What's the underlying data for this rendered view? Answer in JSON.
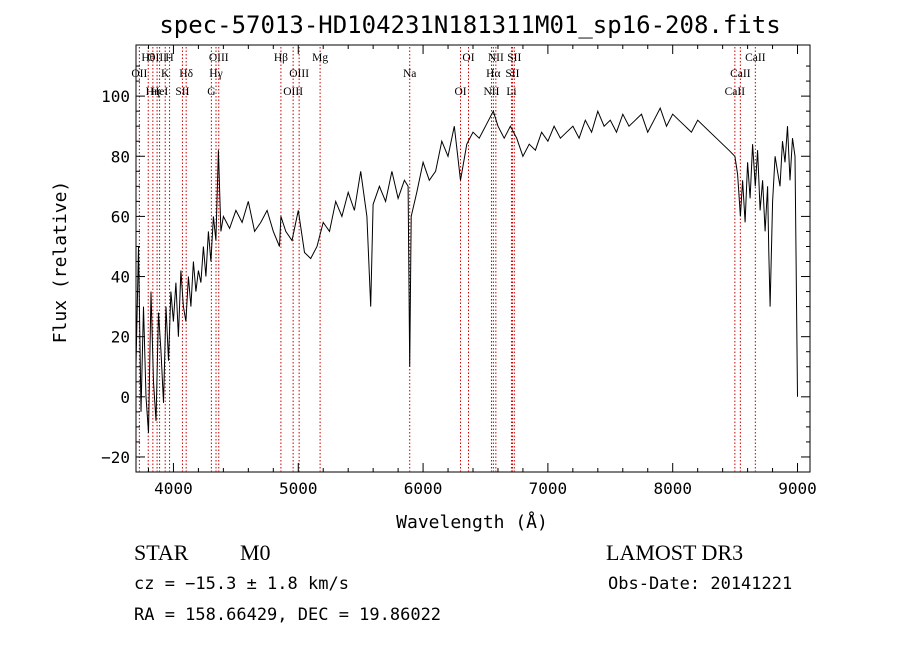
{
  "chart_data": {
    "type": "line",
    "title": "spec-57013-HD104231N181311M01_sp16-208.fits",
    "xlabel": "Wavelength (Å)",
    "ylabel": "Flux (relative)",
    "xlim": [
      3700,
      9100
    ],
    "ylim": [
      -25,
      117
    ],
    "xticks": [
      4000,
      5000,
      6000,
      7000,
      8000,
      9000
    ],
    "xtick_labels": [
      "4000",
      "5000",
      "6000",
      "7000",
      "8000",
      "9000"
    ],
    "yticks": [
      -20,
      0,
      20,
      40,
      60,
      80,
      100
    ],
    "ytick_labels": [
      "−20",
      "0",
      "20",
      "40",
      "60",
      "80",
      "100"
    ],
    "series": [
      {
        "name": "flux",
        "x": [
          3700,
          3720,
          3740,
          3760,
          3780,
          3800,
          3820,
          3840,
          3860,
          3880,
          3900,
          3920,
          3940,
          3960,
          3980,
          4000,
          4020,
          4040,
          4060,
          4080,
          4100,
          4120,
          4140,
          4160,
          4180,
          4200,
          4220,
          4240,
          4260,
          4280,
          4300,
          4320,
          4340,
          4360,
          4380,
          4400,
          4450,
          4500,
          4550,
          4600,
          4650,
          4700,
          4750,
          4800,
          4850,
          4861,
          4900,
          4950,
          5000,
          5050,
          5100,
          5150,
          5200,
          5250,
          5300,
          5350,
          5400,
          5450,
          5500,
          5550,
          5580,
          5600,
          5650,
          5700,
          5750,
          5800,
          5850,
          5880,
          5893,
          5905,
          5950,
          6000,
          6050,
          6100,
          6150,
          6200,
          6250,
          6300,
          6350,
          6400,
          6450,
          6500,
          6563,
          6600,
          6650,
          6700,
          6750,
          6800,
          6850,
          6900,
          6950,
          7000,
          7050,
          7100,
          7150,
          7200,
          7250,
          7300,
          7350,
          7400,
          7450,
          7500,
          7550,
          7600,
          7650,
          7700,
          7750,
          7800,
          7850,
          7900,
          7950,
          8000,
          8050,
          8100,
          8150,
          8200,
          8250,
          8300,
          8350,
          8400,
          8450,
          8498,
          8520,
          8542,
          8560,
          8580,
          8600,
          8620,
          8640,
          8662,
          8680,
          8700,
          8720,
          8740,
          8760,
          8770,
          8780,
          8800,
          8820,
          8840,
          8860,
          8880,
          8900,
          8920,
          8940,
          8960,
          8980,
          9000
        ],
        "y": [
          10,
          50,
          -5,
          30,
          0,
          -12,
          35,
          5,
          -8,
          28,
          15,
          -2,
          30,
          12,
          35,
          25,
          38,
          20,
          42,
          30,
          25,
          40,
          30,
          45,
          35,
          42,
          38,
          50,
          40,
          55,
          45,
          60,
          52,
          82,
          55,
          60,
          56,
          62,
          58,
          65,
          55,
          58,
          62,
          55,
          50,
          60,
          55,
          52,
          62,
          48,
          46,
          50,
          58,
          55,
          65,
          60,
          68,
          62,
          75,
          60,
          30,
          64,
          70,
          65,
          75,
          66,
          72,
          70,
          10,
          60,
          68,
          78,
          72,
          75,
          85,
          80,
          90,
          72,
          84,
          88,
          86,
          90,
          95,
          90,
          86,
          90,
          86,
          80,
          84,
          82,
          88,
          85,
          90,
          86,
          88,
          90,
          86,
          92,
          88,
          95,
          90,
          92,
          88,
          94,
          90,
          92,
          94,
          88,
          92,
          96,
          90,
          94,
          92,
          90,
          88,
          92,
          90,
          88,
          86,
          84,
          82,
          80,
          74,
          60,
          72,
          58,
          78,
          66,
          84,
          70,
          82,
          62,
          72,
          55,
          70,
          48,
          30,
          65,
          80,
          75,
          70,
          85,
          78,
          90,
          72,
          86,
          80,
          0
        ],
        "color": "#000000"
      }
    ],
    "line_markers": [
      {
        "label": "Hθ",
        "wavelength": 3798
      },
      {
        "label": "OII",
        "wavelength": 3727
      },
      {
        "label": "Hη",
        "wavelength": 3835
      },
      {
        "label": "OIII",
        "wavelength": 3869
      },
      {
        "label": "K",
        "wavelength": 3934
      },
      {
        "label": "HeI",
        "wavelength": 3889
      },
      {
        "label": "H",
        "wavelength": 3969
      },
      {
        "label": "Hδ",
        "wavelength": 4102
      },
      {
        "label": "SII",
        "wavelength": 4072
      },
      {
        "label": "OIII",
        "wavelength": 4363
      },
      {
        "label": "Hγ",
        "wavelength": 4341
      },
      {
        "label": "G",
        "wavelength": 4304
      },
      {
        "label": "Hβ",
        "wavelength": 4861
      },
      {
        "label": "OIII",
        "wavelength": 5007
      },
      {
        "label": "OIII",
        "wavelength": 4959
      },
      {
        "label": "Mg",
        "wavelength": 5175
      },
      {
        "label": "Na",
        "wavelength": 5893
      },
      {
        "label": "OI",
        "wavelength": 6300
      },
      {
        "label": "OI",
        "wavelength": 6364
      },
      {
        "label": "Hα",
        "wavelength": 6563
      },
      {
        "label": "NII",
        "wavelength": 6548
      },
      {
        "label": "NII",
        "wavelength": 6583
      },
      {
        "label": "SII",
        "wavelength": 6716
      },
      {
        "label": "Li",
        "wavelength": 6708
      },
      {
        "label": "SII",
        "wavelength": 6731
      },
      {
        "label": "CaII",
        "wavelength": 8542
      },
      {
        "label": "CaII",
        "wavelength": 8498
      },
      {
        "label": "CaII",
        "wavelength": 8662
      }
    ],
    "marker_color": "#cc0000"
  },
  "info": {
    "object_class": "STAR",
    "subclass": "M0",
    "survey": "LAMOST DR3",
    "redshift": "cz = −15.3 ± 1.8 km/s",
    "obs_date": "Obs-Date: 20141221",
    "coords": "RA = 158.66429, DEC =  19.86022"
  }
}
